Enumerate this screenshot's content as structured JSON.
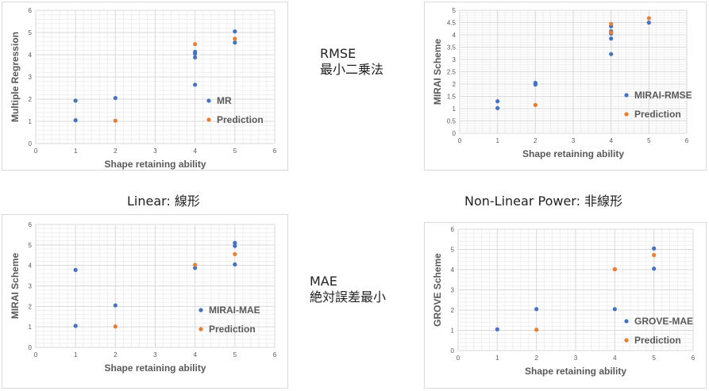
{
  "labels": {
    "linear": "Linear: 線形",
    "nonlinear": "Non-Linear Power: 非線形",
    "rmse_title": "RMSE",
    "rmse_sub": "最小二乗法",
    "mae_title": "MAE",
    "mae_sub": "絶対誤差最小"
  },
  "colors": {
    "series_blue": "#4472c4",
    "series_orange": "#ed7d31",
    "grid": "#d9d9d9",
    "axis_text": "#595959"
  },
  "chart_data": [
    {
      "type": "scatter",
      "xlabel": "Shape retaining ability",
      "ylabel": "Multiple Regression",
      "xlim": [
        0,
        6
      ],
      "ylim": [
        0,
        6
      ],
      "xticks": [
        0,
        1,
        2,
        3,
        4,
        5,
        6
      ],
      "yticks": [
        0,
        1,
        2,
        3,
        4,
        5,
        6
      ],
      "grid": true,
      "legend_position": "right",
      "series": [
        {
          "name": "MR",
          "color": "#4472c4",
          "x": [
            1,
            1,
            2,
            4,
            4,
            4,
            4,
            5,
            5
          ],
          "y": [
            1.05,
            1.93,
            2.05,
            2.65,
            3.88,
            4.05,
            4.13,
            4.55,
            5.05
          ]
        },
        {
          "name": "Prediction",
          "color": "#ed7d31",
          "x": [
            2,
            4,
            5
          ],
          "y": [
            1.03,
            4.48,
            4.72
          ]
        }
      ]
    },
    {
      "type": "scatter",
      "xlabel": "Shape retaining ability",
      "ylabel": "MIRAI Scheme",
      "xlim": [
        0,
        6
      ],
      "ylim": [
        0,
        5
      ],
      "xticks": [
        0,
        1,
        2,
        3,
        4,
        5,
        6
      ],
      "yticks": [
        0,
        0.5,
        1,
        1.5,
        2,
        2.5,
        3,
        3.5,
        4,
        4.5,
        5
      ],
      "grid": true,
      "legend_position": "right",
      "series": [
        {
          "name": "MIRAI-RMSE",
          "color": "#4472c4",
          "x": [
            1,
            1,
            2,
            2,
            4,
            4,
            4,
            4,
            4,
            5
          ],
          "y": [
            1.02,
            1.3,
            1.98,
            2.05,
            3.22,
            3.85,
            4.05,
            4.15,
            4.35,
            4.5
          ]
        },
        {
          "name": "Prediction",
          "color": "#ed7d31",
          "x": [
            2,
            4,
            4,
            5
          ],
          "y": [
            1.15,
            4.1,
            4.45,
            4.68
          ]
        }
      ]
    },
    {
      "type": "scatter",
      "xlabel": "Shape retaining ability",
      "ylabel": "MIRAI Scheme",
      "xlim": [
        0,
        6
      ],
      "ylim": [
        0,
        6
      ],
      "xticks": [
        0,
        1,
        2,
        3,
        4,
        5,
        6
      ],
      "yticks": [
        0,
        1,
        2,
        3,
        4,
        5,
        6
      ],
      "grid": true,
      "legend_position": "right",
      "series": [
        {
          "name": "MIRAI-MAE",
          "color": "#4472c4",
          "x": [
            1,
            1,
            2,
            4,
            5,
            5,
            5
          ],
          "y": [
            1.05,
            3.78,
            2.05,
            3.88,
            4.05,
            4.95,
            5.1
          ]
        },
        {
          "name": "Prediction",
          "color": "#ed7d31",
          "x": [
            2,
            4,
            5
          ],
          "y": [
            1.02,
            4.03,
            4.55
          ]
        }
      ]
    },
    {
      "type": "scatter",
      "xlabel": "Shape retaining ability",
      "ylabel": "GROVE Scheme",
      "xlim": [
        0,
        6
      ],
      "ylim": [
        0,
        6
      ],
      "xticks": [
        0,
        1,
        2,
        3,
        4,
        5,
        6
      ],
      "yticks": [
        0,
        1,
        2,
        3,
        4,
        5,
        6
      ],
      "grid": true,
      "legend_position": "right",
      "series": [
        {
          "name": "GROVE-MAE",
          "color": "#4472c4",
          "x": [
            1,
            2,
            4,
            4,
            5,
            5
          ],
          "y": [
            1.05,
            2.05,
            2.05,
            4.02,
            4.05,
            5.05
          ]
        },
        {
          "name": "Prediction",
          "color": "#ed7d31",
          "x": [
            2,
            4,
            5
          ],
          "y": [
            1.03,
            4.02,
            4.72
          ]
        }
      ]
    }
  ]
}
